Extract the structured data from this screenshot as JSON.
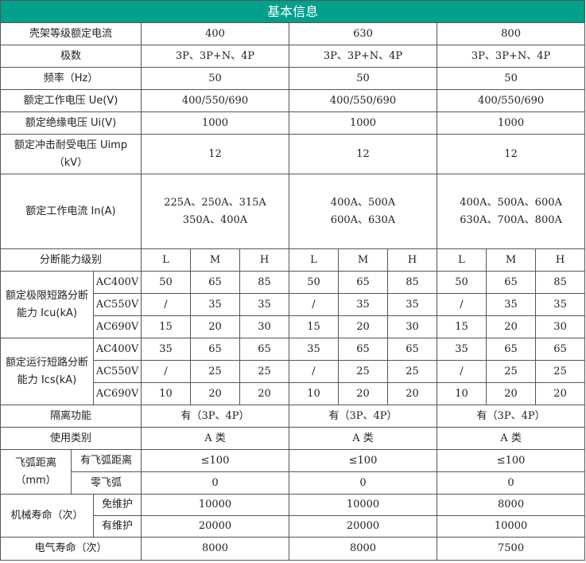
{
  "title": "基本信息",
  "frame": {
    "label": "壳架等级额定电流",
    "values": [
      "400",
      "630",
      "800"
    ]
  },
  "rows": [
    {
      "label": "极数",
      "values": [
        "3P、3P+N、4P",
        "3P、3P+N、4P",
        "3P、3P+N、4P"
      ]
    },
    {
      "label": "频率（Hz）",
      "values": [
        "50",
        "50",
        "50"
      ]
    },
    {
      "label": "额定工作电压 Ue(V)",
      "values": [
        "400/550/690",
        "400/550/690",
        "400/550/690"
      ]
    },
    {
      "label": "额定绝缘电压 Ui(V)",
      "values": [
        "1000",
        "1000",
        "1000"
      ]
    },
    {
      "label": "额定冲击耐受电压 Uimp（kV）",
      "values": [
        "12",
        "12",
        "12"
      ]
    }
  ],
  "current": {
    "label": "额定工作电流 In(A)",
    "values": [
      [
        "225A、250A、315A",
        "350A、400A"
      ],
      [
        "400A、500A",
        "600A、630A"
      ],
      [
        "400A、500A、600A",
        "630A、700A、800A"
      ]
    ]
  },
  "breaking": {
    "label": "分断能力级别",
    "levels": [
      "L",
      "M",
      "H",
      "L",
      "M",
      "H",
      "L",
      "M",
      "H"
    ],
    "groups": [
      {
        "label": "额定极限短路分断能力 Icu(kA)",
        "rows": [
          {
            "v": "AC400V",
            "values": [
              "50",
              "65",
              "85",
              "50",
              "65",
              "85",
              "50",
              "65",
              "85"
            ]
          },
          {
            "v": "AC550V",
            "values": [
              "/",
              "35",
              "35",
              "/",
              "35",
              "35",
              "/",
              "35",
              "35"
            ]
          },
          {
            "v": "AC690V",
            "values": [
              "15",
              "20",
              "30",
              "15",
              "20",
              "30",
              "15",
              "20",
              "30"
            ]
          }
        ]
      },
      {
        "label": "额定运行短路分断能力 Ics(kA)",
        "rows": [
          {
            "v": "AC400V",
            "values": [
              "35",
              "65",
              "65",
              "35",
              "65",
              "65",
              "35",
              "65",
              "65"
            ]
          },
          {
            "v": "AC550V",
            "values": [
              "/",
              "25",
              "25",
              "/",
              "25",
              "25",
              "/",
              "25",
              "25"
            ]
          },
          {
            "v": "AC690V",
            "values": [
              "10",
              "20",
              "20",
              "10",
              "20",
              "20",
              "10",
              "20",
              "20"
            ]
          }
        ]
      }
    ]
  },
  "isolation": {
    "label": "隔离功能",
    "values": [
      "有（3P、4P）",
      "有（3P、4P）",
      "有（3P、4P）"
    ]
  },
  "category": {
    "label": "使用类别",
    "values": [
      "A 类",
      "A 类",
      "A 类"
    ]
  },
  "arc": {
    "label": "飞弧距离（mm）",
    "rows": [
      {
        "label": "有飞弧距离",
        "values": [
          "≤100",
          "≤100",
          "≤100"
        ]
      },
      {
        "label": "零飞弧",
        "values": [
          "0",
          "0",
          "0"
        ]
      }
    ]
  },
  "mech": {
    "label": "机械寿命（次）",
    "rows": [
      {
        "label": "免维护",
        "values": [
          "10000",
          "10000",
          "8000"
        ]
      },
      {
        "label": "有维护",
        "values": [
          "20000",
          "20000",
          "10000"
        ]
      }
    ]
  },
  "elec": {
    "label": "电气寿命（次）",
    "values": [
      "8000",
      "8000",
      "7500"
    ]
  }
}
